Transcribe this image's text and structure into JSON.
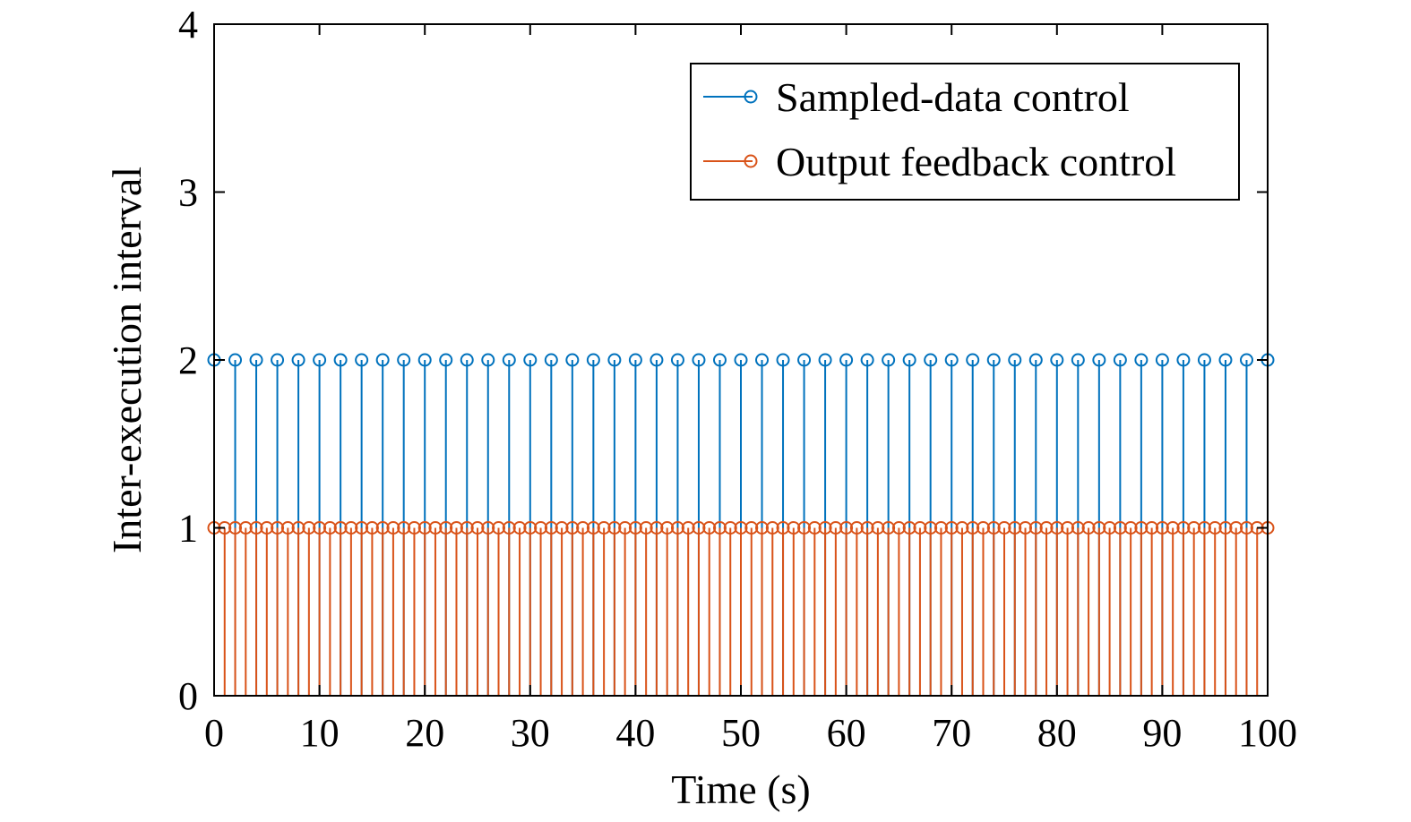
{
  "chart_data": {
    "type": "stem",
    "xlabel": "Time (s)",
    "ylabel": "Inter-execution interval",
    "xlim": [
      0,
      100
    ],
    "ylim": [
      0,
      4
    ],
    "xticks": [
      0,
      10,
      20,
      30,
      40,
      50,
      60,
      70,
      80,
      90,
      100
    ],
    "yticks": [
      0,
      1,
      2,
      3,
      4
    ],
    "grid": false,
    "legend_position": "top-right",
    "series": [
      {
        "name": "Sampled-data control",
        "color": "#0072BD",
        "x": [
          0,
          2,
          4,
          6,
          8,
          10,
          12,
          14,
          16,
          18,
          20,
          22,
          24,
          26,
          28,
          30,
          32,
          34,
          36,
          38,
          40,
          42,
          44,
          46,
          48,
          50,
          52,
          54,
          56,
          58,
          60,
          62,
          64,
          66,
          68,
          70,
          72,
          74,
          76,
          78,
          80,
          82,
          84,
          86,
          88,
          90,
          92,
          94,
          96,
          98,
          100
        ],
        "y": [
          2,
          2,
          2,
          2,
          2,
          2,
          2,
          2,
          2,
          2,
          2,
          2,
          2,
          2,
          2,
          2,
          2,
          2,
          2,
          2,
          2,
          2,
          2,
          2,
          2,
          2,
          2,
          2,
          2,
          2,
          2,
          2,
          2,
          2,
          2,
          2,
          2,
          2,
          2,
          2,
          2,
          2,
          2,
          2,
          2,
          2,
          2,
          2,
          2,
          2,
          2
        ]
      },
      {
        "name": "Output feedback control",
        "color": "#D95319",
        "x": [
          0,
          1,
          2,
          3,
          4,
          5,
          6,
          7,
          8,
          9,
          10,
          11,
          12,
          13,
          14,
          15,
          16,
          17,
          18,
          19,
          20,
          21,
          22,
          23,
          24,
          25,
          26,
          27,
          28,
          29,
          30,
          31,
          32,
          33,
          34,
          35,
          36,
          37,
          38,
          39,
          40,
          41,
          42,
          43,
          44,
          45,
          46,
          47,
          48,
          49,
          50,
          51,
          52,
          53,
          54,
          55,
          56,
          57,
          58,
          59,
          60,
          61,
          62,
          63,
          64,
          65,
          66,
          67,
          68,
          69,
          70,
          71,
          72,
          73,
          74,
          75,
          76,
          77,
          78,
          79,
          80,
          81,
          82,
          83,
          84,
          85,
          86,
          87,
          88,
          89,
          90,
          91,
          92,
          93,
          94,
          95,
          96,
          97,
          98,
          99,
          100
        ],
        "y": [
          1,
          1,
          1,
          1,
          1,
          1,
          1,
          1,
          1,
          1,
          1,
          1,
          1,
          1,
          1,
          1,
          1,
          1,
          1,
          1,
          1,
          1,
          1,
          1,
          1,
          1,
          1,
          1,
          1,
          1,
          1,
          1,
          1,
          1,
          1,
          1,
          1,
          1,
          1,
          1,
          1,
          1,
          1,
          1,
          1,
          1,
          1,
          1,
          1,
          1,
          1,
          1,
          1,
          1,
          1,
          1,
          1,
          1,
          1,
          1,
          1,
          1,
          1,
          1,
          1,
          1,
          1,
          1,
          1,
          1,
          1,
          1,
          1,
          1,
          1,
          1,
          1,
          1,
          1,
          1,
          1,
          1,
          1,
          1,
          1,
          1,
          1,
          1,
          1,
          1,
          1,
          1,
          1,
          1,
          1,
          1,
          1,
          1,
          1,
          1,
          1
        ]
      }
    ]
  }
}
